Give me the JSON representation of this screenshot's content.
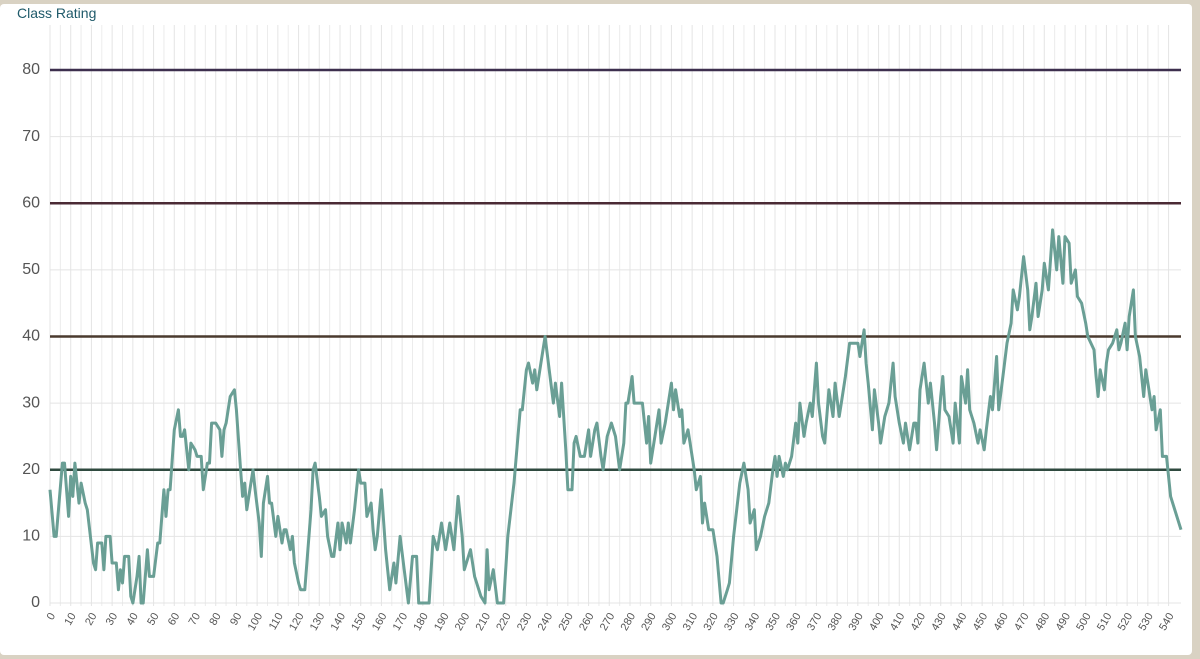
{
  "chart_data": {
    "type": "line",
    "title": "Class Rating",
    "xlim": [
      0,
      546
    ],
    "ylim": [
      0,
      80
    ],
    "yticks": [
      0,
      10,
      20,
      30,
      40,
      50,
      60,
      70,
      80
    ],
    "xticks": [
      0,
      10,
      20,
      30,
      40,
      50,
      60,
      70,
      80,
      90,
      100,
      110,
      120,
      130,
      140,
      150,
      160,
      170,
      180,
      190,
      200,
      210,
      220,
      230,
      240,
      250,
      260,
      270,
      280,
      290,
      300,
      310,
      320,
      330,
      340,
      350,
      360,
      370,
      380,
      390,
      400,
      410,
      420,
      430,
      440,
      450,
      460,
      470,
      480,
      490,
      500,
      510,
      520,
      530,
      540
    ],
    "grid": true,
    "reference_lines": [
      {
        "value": 20,
        "color": "#2f4a3f"
      },
      {
        "value": 40,
        "color": "#4a3a2e"
      },
      {
        "value": 60,
        "color": "#4a2a34"
      },
      {
        "value": 80,
        "color": "#3d2f4e"
      }
    ],
    "series": [
      {
        "color": "#6a9f95",
        "x": [
          0,
          2,
          3,
          6,
          7,
          9,
          10,
          11,
          12,
          14,
          15,
          17,
          18,
          21,
          22,
          23,
          25,
          26,
          27,
          29,
          30,
          32,
          33,
          34,
          35,
          36,
          38,
          39,
          40,
          42,
          43,
          44,
          45,
          47,
          48,
          50,
          52,
          53,
          55,
          56,
          57,
          58,
          60,
          62,
          63,
          64,
          65,
          67,
          68,
          70,
          71,
          73,
          74,
          76,
          77,
          78,
          80,
          82,
          83,
          84,
          85,
          87,
          89,
          90,
          92,
          93,
          94,
          95,
          97,
          98,
          99,
          101,
          102,
          103,
          105,
          106,
          107,
          109,
          110,
          112,
          113,
          114,
          116,
          117,
          118,
          120,
          121,
          123,
          126,
          127,
          128,
          130,
          131,
          133,
          134,
          136,
          137,
          139,
          140,
          141,
          143,
          144,
          145,
          147,
          149,
          150,
          152,
          153,
          155,
          156,
          157,
          158,
          160,
          162,
          164,
          166,
          167,
          169,
          171,
          173,
          175,
          177,
          178,
          183,
          185,
          187,
          189,
          191,
          193,
          195,
          197,
          199,
          200,
          203,
          205,
          208,
          210,
          211,
          212,
          214,
          216,
          219,
          221,
          224,
          227,
          228,
          230,
          231,
          233,
          234,
          235,
          237,
          239,
          241,
          243,
          244,
          246,
          247,
          249,
          250,
          252,
          253,
          254,
          256,
          258,
          260,
          261,
          263,
          264,
          266,
          267,
          269,
          271,
          273,
          275,
          277,
          278,
          279,
          281,
          282,
          286,
          288,
          289,
          290,
          292,
          294,
          295,
          297,
          300,
          301,
          302,
          304,
          305,
          306,
          308,
          309,
          311,
          312,
          314,
          315,
          316,
          318,
          320,
          322,
          324,
          325,
          327,
          328,
          330,
          333,
          335,
          337,
          338,
          340,
          341,
          343,
          345,
          347,
          349,
          350,
          351,
          352,
          354,
          355,
          356,
          358,
          360,
          361,
          362,
          364,
          365,
          367,
          368,
          370,
          371,
          373,
          374,
          376,
          378,
          379,
          381,
          382,
          384,
          386,
          390,
          391,
          393,
          394,
          395,
          397,
          398,
          400,
          401,
          403,
          405,
          407,
          408,
          410,
          412,
          413,
          415,
          417,
          418,
          419,
          420,
          422,
          424,
          425,
          427,
          428,
          430,
          431,
          432,
          434,
          436,
          437,
          439,
          440,
          442,
          443,
          444,
          446,
          448,
          449,
          451,
          452,
          454,
          455,
          457,
          458,
          460,
          462,
          464,
          465,
          467,
          468,
          470,
          472,
          473,
          474,
          476,
          477,
          479,
          480,
          482,
          484,
          486,
          487,
          489,
          490,
          492,
          493,
          495,
          496,
          498,
          500,
          501,
          504,
          505,
          506,
          507,
          509,
          510,
          511,
          513,
          515,
          516,
          517,
          519,
          520,
          521,
          523,
          524,
          526,
          528,
          529,
          530,
          532,
          533,
          534,
          536,
          537,
          539,
          541,
          546
        ],
        "values": [
          17,
          10,
          10,
          21,
          21,
          13,
          19,
          16,
          21,
          15,
          18,
          15,
          14,
          6,
          5,
          9,
          9,
          5,
          10,
          10,
          6,
          6,
          2,
          5,
          3,
          7,
          7,
          1,
          0,
          4,
          7,
          0,
          0,
          8,
          4,
          4,
          9,
          9,
          17,
          13,
          17,
          17,
          26,
          29,
          25,
          25,
          26,
          20,
          24,
          23,
          22,
          22,
          17,
          21,
          21,
          27,
          27,
          26,
          22,
          26,
          27,
          31,
          32,
          29,
          20,
          16,
          18,
          14,
          18,
          20,
          17,
          12,
          7,
          15,
          19,
          15,
          15,
          10,
          13,
          9,
          11,
          11,
          8,
          10,
          6,
          3,
          2,
          2,
          14,
          20,
          21,
          16,
          13,
          14,
          10,
          7,
          7,
          12,
          8,
          12,
          9,
          12,
          9,
          14,
          20,
          18,
          18,
          13,
          15,
          11,
          8,
          10,
          17,
          8,
          2,
          6,
          3,
          10,
          5,
          0,
          7,
          7,
          0,
          0,
          10,
          8,
          12,
          8,
          12,
          8,
          16,
          10,
          5,
          8,
          4,
          1,
          0,
          8,
          2,
          5,
          0,
          0,
          10,
          18,
          29,
          29,
          35,
          36,
          33,
          35,
          32,
          36,
          40,
          35,
          30,
          33,
          28,
          33,
          23,
          17,
          17,
          24,
          25,
          22,
          22,
          26,
          22,
          26,
          27,
          22,
          20,
          25,
          27,
          25,
          20,
          24,
          30,
          30,
          34,
          30,
          30,
          24,
          28,
          21,
          25,
          29,
          24,
          27,
          33,
          29,
          32,
          28,
          29,
          24,
          26,
          24,
          20,
          17,
          19,
          12,
          15,
          11,
          11,
          7,
          0,
          0,
          2,
          3,
          10,
          18,
          21,
          17,
          12,
          14,
          8,
          10,
          13,
          15,
          20,
          22,
          19,
          22,
          19,
          21,
          20,
          22,
          27,
          24,
          30,
          25,
          27,
          30,
          28,
          36,
          30,
          25,
          24,
          32,
          28,
          33,
          28,
          30,
          34,
          39,
          39,
          37,
          41,
          36,
          33,
          26,
          32,
          27,
          24,
          28,
          30,
          36,
          31,
          27,
          24,
          27,
          23,
          27,
          27,
          24,
          32,
          36,
          30,
          33,
          27,
          23,
          31,
          34,
          29,
          28,
          24,
          30,
          24,
          34,
          30,
          35,
          29,
          27,
          24,
          26,
          23,
          26,
          31,
          29,
          37,
          29,
          34,
          39,
          42,
          47,
          44,
          46,
          52,
          47,
          41,
          43,
          48,
          43,
          47,
          51,
          47,
          56,
          50,
          55,
          48,
          55,
          54,
          48,
          50,
          46,
          45,
          42,
          40,
          38,
          34,
          31,
          35,
          32,
          36,
          38,
          39,
          41,
          38,
          39,
          42,
          38,
          43,
          47,
          40,
          37,
          31,
          35,
          33,
          29,
          31,
          26,
          29,
          22,
          22,
          16,
          11
        ]
      }
    ]
  }
}
